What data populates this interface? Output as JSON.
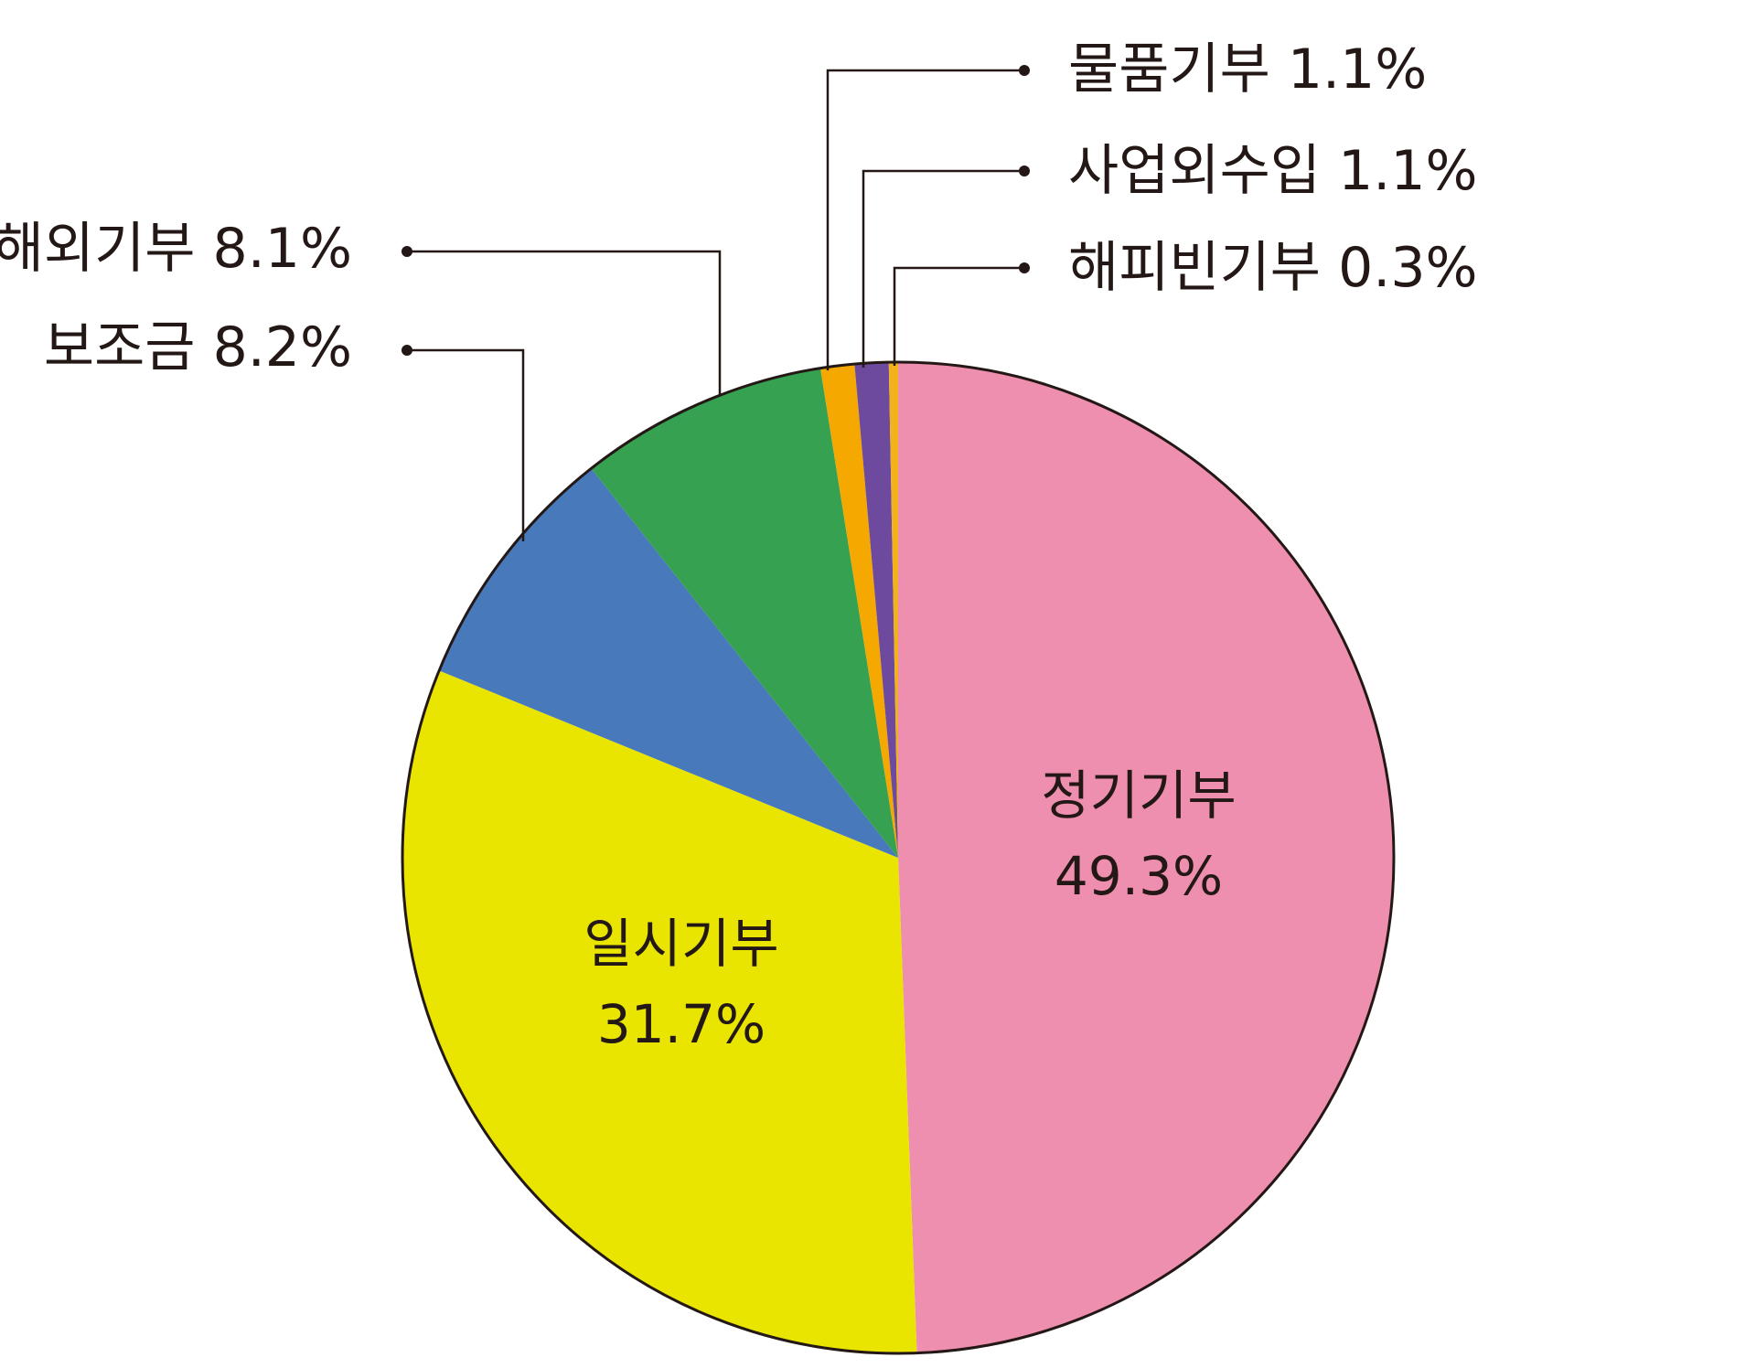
{
  "chart_data": {
    "type": "pie",
    "title": "",
    "start_angle_deg": 0,
    "direction": "clockwise",
    "slices": [
      {
        "label": "정기기부",
        "value": 49.3,
        "value_text": "49.3%",
        "color": "#EF8FAF",
        "label_position": "inside"
      },
      {
        "label": "일시기부",
        "value": 31.7,
        "value_text": "31.7%",
        "color": "#E9E500",
        "label_position": "inside"
      },
      {
        "label": "보조금",
        "value": 8.2,
        "value_text": "8.2%",
        "color": "#4879BB",
        "label_position": "callout-left"
      },
      {
        "label": "해외기부",
        "value": 8.1,
        "value_text": "8.1%",
        "color": "#36A151",
        "label_position": "callout-left"
      },
      {
        "label": "물품기부",
        "value": 1.1,
        "value_text": "1.1%",
        "color": "#F4A800",
        "label_position": "callout-right"
      },
      {
        "label": "사업외수입",
        "value": 1.1,
        "value_text": "1.1%",
        "color": "#6E4A9E",
        "label_position": "callout-right"
      },
      {
        "label": "해피빈기부",
        "value": 0.3,
        "value_text": "0.3%",
        "color": "#F2B21B",
        "label_position": "callout-right"
      }
    ],
    "outline_color": "#231815",
    "text_color": "#231815"
  }
}
